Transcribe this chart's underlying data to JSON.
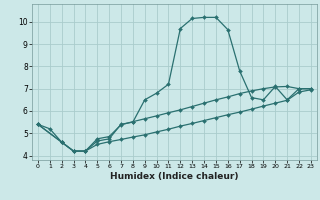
{
  "xlabel": "Humidex (Indice chaleur)",
  "bg_color": "#cce8e8",
  "line_color": "#2a7070",
  "grid_color": "#aacccc",
  "xlim": [
    -0.5,
    23.5
  ],
  "ylim": [
    3.8,
    10.8
  ],
  "xticks": [
    0,
    1,
    2,
    3,
    4,
    5,
    6,
    7,
    8,
    9,
    10,
    11,
    12,
    13,
    14,
    15,
    16,
    17,
    18,
    19,
    20,
    21,
    22,
    23
  ],
  "yticks": [
    4,
    5,
    6,
    7,
    8,
    9,
    10
  ],
  "line1_x": [
    0,
    1,
    2,
    3,
    4,
    5,
    6,
    7,
    8,
    9,
    10,
    11,
    12,
    13,
    14,
    15,
    16,
    17,
    18,
    19,
    20,
    21,
    22,
    23
  ],
  "line1_y": [
    5.4,
    5.2,
    4.6,
    4.2,
    4.2,
    4.65,
    4.75,
    5.4,
    5.5,
    6.5,
    6.8,
    7.2,
    9.7,
    10.15,
    10.2,
    10.2,
    9.65,
    7.8,
    6.6,
    6.5,
    7.1,
    6.5,
    7.0,
    7.0
  ],
  "line2_x": [
    0,
    2,
    3,
    4,
    5,
    6,
    7,
    8,
    9,
    10,
    11,
    12,
    13,
    14,
    15,
    16,
    17,
    18,
    19,
    20,
    21,
    22,
    23
  ],
  "line2_y": [
    5.4,
    4.6,
    4.2,
    4.2,
    4.75,
    4.85,
    5.38,
    5.52,
    5.65,
    5.78,
    5.92,
    6.05,
    6.2,
    6.35,
    6.5,
    6.63,
    6.78,
    6.9,
    7.0,
    7.08,
    7.1,
    7.0,
    7.0
  ],
  "line3_x": [
    0,
    2,
    3,
    4,
    5,
    6,
    7,
    8,
    9,
    10,
    11,
    12,
    13,
    14,
    15,
    16,
    17,
    18,
    19,
    20,
    21,
    22,
    23
  ],
  "line3_y": [
    5.4,
    4.6,
    4.2,
    4.2,
    4.5,
    4.62,
    4.72,
    4.83,
    4.93,
    5.06,
    5.18,
    5.32,
    5.44,
    5.57,
    5.7,
    5.83,
    5.95,
    6.08,
    6.22,
    6.35,
    6.48,
    6.85,
    6.95
  ]
}
